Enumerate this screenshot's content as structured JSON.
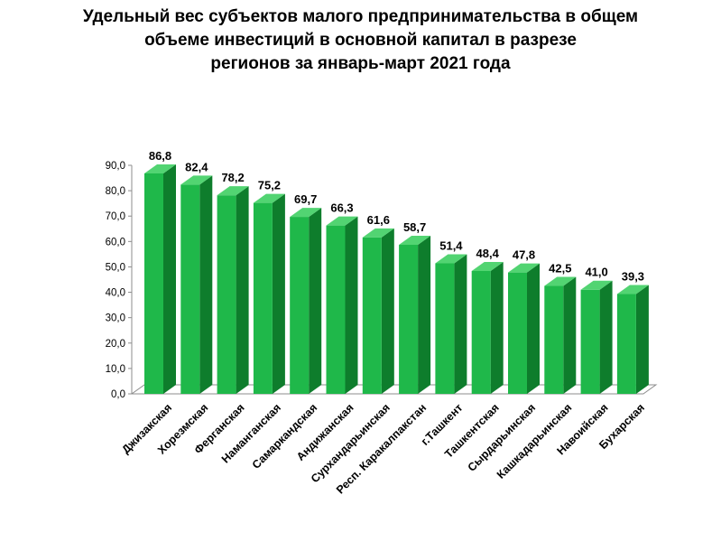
{
  "chart_data": {
    "type": "bar",
    "title_lines": [
      "Удельный вес субъектов малого предпринимательства в общем",
      "объеме инвестиций в основной капитал в разрезе",
      "регионов за январь-март 2021 года"
    ],
    "categories": [
      "Джизакская",
      "Хорезмская",
      "Ферганская",
      "Наманганская",
      "Самаркандская",
      "Андижанская",
      "Сурхандарьинская",
      "Респ. Каракалпакстан",
      "г.Ташкент",
      "Ташкентская",
      "Сырдарьинская",
      "Кашкадарьинская",
      "Навоийская",
      "Бухарская"
    ],
    "values": [
      86.8,
      82.4,
      78.2,
      75.2,
      69.7,
      66.3,
      61.6,
      58.7,
      51.4,
      48.4,
      47.8,
      42.5,
      41.0,
      39.3
    ],
    "value_labels": [
      "86,8",
      "82,4",
      "78,2",
      "75,2",
      "69,7",
      "66,3",
      "61,6",
      "58,7",
      "51,4",
      "48,4",
      "47,8",
      "42,5",
      "41,0",
      "39,3"
    ],
    "ylim": [
      0,
      90
    ],
    "yticks": [
      "0,0",
      "10,0",
      "20,0",
      "30,0",
      "40,0",
      "50,0",
      "60,0",
      "70,0",
      "80,0",
      "90,0"
    ],
    "xlabel": "",
    "ylabel": "",
    "grid": false,
    "legend": "none",
    "colors": {
      "bar_front": "#1fb84a",
      "bar_side": "#0e7d2c",
      "bar_top": "#52d472"
    }
  }
}
